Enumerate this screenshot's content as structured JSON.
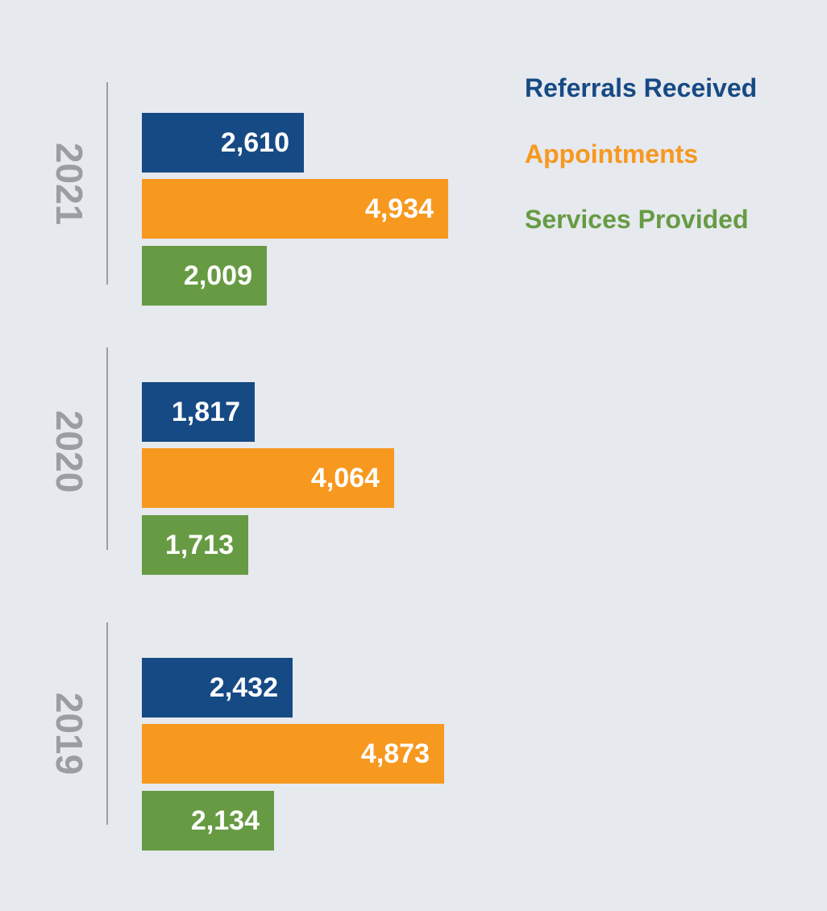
{
  "chart_data": {
    "type": "bar",
    "orientation": "horizontal",
    "categories": [
      "2021",
      "2020",
      "2019"
    ],
    "series": [
      {
        "name": "Referrals Received",
        "color": "#164a84",
        "values": [
          2610,
          1817,
          2432
        ],
        "labels": [
          "2,610",
          "1,817",
          "2,432"
        ]
      },
      {
        "name": "Appointments",
        "color": "#f7981f",
        "values": [
          4934,
          4064,
          4873
        ],
        "labels": [
          "4,934",
          "4,064",
          "4,873"
        ]
      },
      {
        "name": "Services Provided",
        "color": "#679b43",
        "values": [
          2009,
          1713,
          2134
        ],
        "labels": [
          "2,009",
          "1,713",
          "2,134"
        ]
      }
    ],
    "xlim": [
      0,
      5000
    ],
    "grid": false,
    "legend_position": "top-right"
  }
}
